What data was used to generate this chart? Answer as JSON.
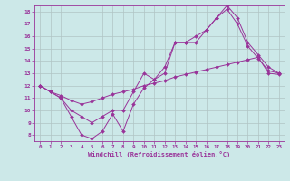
{
  "title": "",
  "xlabel": "Windchill (Refroidissement éolien,°C)",
  "ylabel": "",
  "xlim": [
    -0.5,
    23.5
  ],
  "ylim": [
    7.5,
    18.5
  ],
  "yticks": [
    8,
    9,
    10,
    11,
    12,
    13,
    14,
    15,
    16,
    17,
    18
  ],
  "xticks": [
    0,
    1,
    2,
    3,
    4,
    5,
    6,
    7,
    8,
    9,
    10,
    11,
    12,
    13,
    14,
    15,
    16,
    17,
    18,
    19,
    20,
    21,
    22,
    23
  ],
  "line_color": "#993399",
  "bg_color": "#cce8e8",
  "grid_color": "#b0c4c4",
  "line1_x": [
    0,
    1,
    2,
    3,
    4,
    5,
    6,
    7,
    8,
    9,
    10,
    11,
    12,
    13,
    14,
    15,
    16,
    17,
    18,
    19,
    20,
    21,
    22,
    23
  ],
  "line1_y": [
    12.0,
    11.5,
    11.0,
    9.5,
    8.0,
    7.7,
    8.3,
    9.7,
    8.3,
    10.5,
    11.8,
    12.5,
    13.0,
    15.5,
    15.5,
    16.0,
    16.5,
    17.5,
    18.2,
    17.0,
    15.2,
    14.2,
    13.2,
    13.0
  ],
  "line2_x": [
    0,
    1,
    2,
    3,
    4,
    5,
    6,
    7,
    8,
    9,
    10,
    11,
    12,
    13,
    14,
    15,
    16,
    17,
    18,
    19,
    20,
    21,
    22,
    23
  ],
  "line2_y": [
    12.0,
    11.5,
    11.0,
    10.0,
    9.5,
    9.0,
    9.5,
    10.0,
    10.0,
    11.5,
    13.0,
    12.5,
    13.5,
    15.5,
    15.5,
    15.5,
    16.5,
    17.5,
    18.5,
    17.5,
    15.5,
    14.5,
    13.5,
    13.0
  ],
  "line3_x": [
    0,
    1,
    2,
    3,
    4,
    5,
    6,
    7,
    8,
    9,
    10,
    11,
    12,
    13,
    14,
    15,
    16,
    17,
    18,
    19,
    20,
    21,
    22,
    23
  ],
  "line3_y": [
    12.0,
    11.5,
    11.2,
    10.8,
    10.5,
    10.7,
    11.0,
    11.3,
    11.5,
    11.7,
    12.0,
    12.2,
    12.4,
    12.7,
    12.9,
    13.1,
    13.3,
    13.5,
    13.7,
    13.9,
    14.1,
    14.3,
    13.0,
    12.9
  ]
}
